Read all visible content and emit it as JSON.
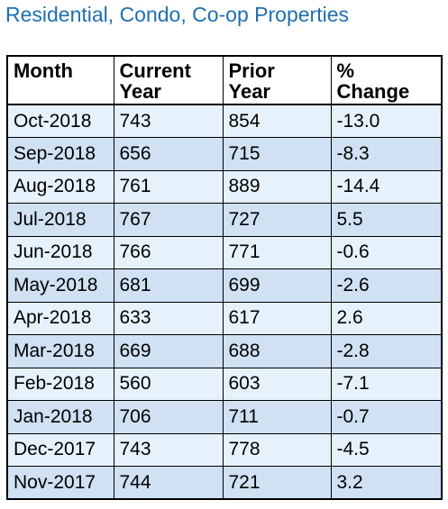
{
  "title": "Residential, Condo, Co-op Properties",
  "colors": {
    "title": "#1f6fb2",
    "row_light": "#e6f2fb",
    "row_dark": "#cfe1f3"
  },
  "chart_data": {
    "type": "table",
    "title": "Residential, Condo, Co-op Properties",
    "columns": [
      "Month",
      "Current Year",
      "Prior Year",
      "% Change"
    ],
    "header_lines": [
      [
        "Month"
      ],
      [
        "Current",
        "Year"
      ],
      [
        "Prior",
        "Year"
      ],
      [
        "%",
        "Change"
      ]
    ],
    "rows": [
      [
        "Oct-2018",
        "743",
        "854",
        "-13.0"
      ],
      [
        "Sep-2018",
        "656",
        "715",
        "-8.3"
      ],
      [
        "Aug-2018",
        "761",
        "889",
        "-14.4"
      ],
      [
        "Jul-2018",
        "767",
        "727",
        "5.5"
      ],
      [
        "Jun-2018",
        "766",
        "771",
        "-0.6"
      ],
      [
        "May-2018",
        "681",
        "699",
        "-2.6"
      ],
      [
        "Apr-2018",
        "633",
        "617",
        "2.6"
      ],
      [
        "Mar-2018",
        "669",
        "688",
        "-2.8"
      ],
      [
        "Feb-2018",
        "560",
        "603",
        "-7.1"
      ],
      [
        "Jan-2018",
        "706",
        "711",
        "-0.7"
      ],
      [
        "Dec-2017",
        "743",
        "778",
        "-4.5"
      ],
      [
        "Nov-2017",
        "744",
        "721",
        "3.2"
      ]
    ]
  }
}
